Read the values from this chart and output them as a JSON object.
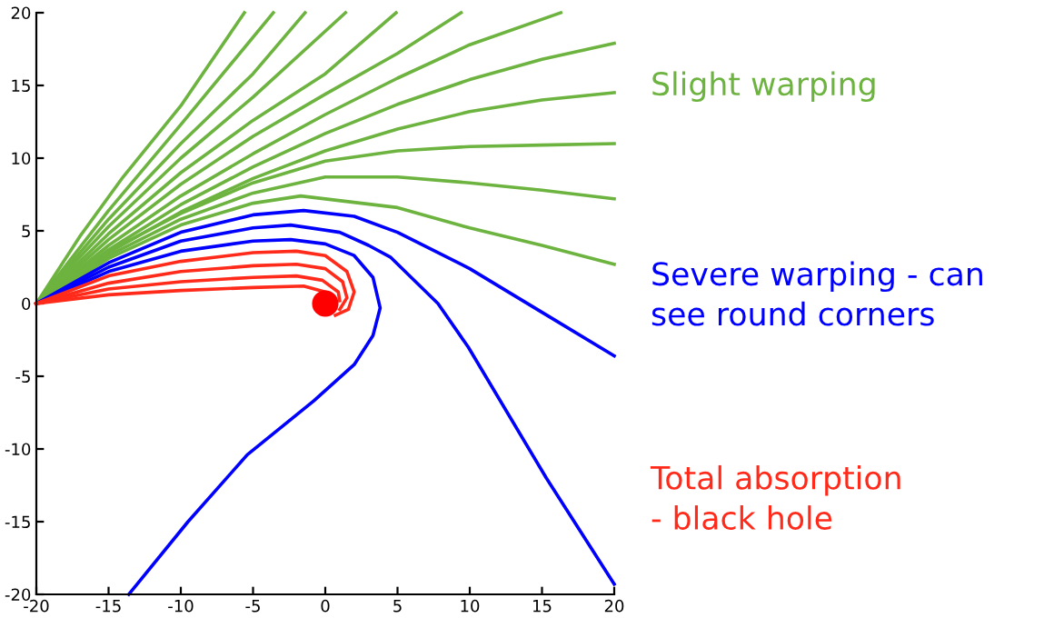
{
  "chart_data": {
    "type": "line",
    "xlim": [
      -20,
      20
    ],
    "ylim": [
      -20,
      20
    ],
    "xticks": [
      -20,
      -15,
      -10,
      -5,
      0,
      5,
      10,
      15,
      20
    ],
    "yticks": [
      -20,
      -15,
      -10,
      -5,
      0,
      5,
      10,
      15,
      20
    ],
    "grid": false,
    "marker": "none",
    "line_style": "solid",
    "series": [
      {
        "color": "#6db33f",
        "x": [
          -20,
          -17,
          -14,
          -10,
          -5.6
        ],
        "values": [
          0,
          4.6,
          8.7,
          13.6,
          20
        ]
      },
      {
        "color": "#6db33f",
        "x": [
          -20,
          -15,
          -10,
          -3.6
        ],
        "values": [
          0,
          6.4,
          12.3,
          20
        ]
      },
      {
        "color": "#6db33f",
        "x": [
          -20,
          -15,
          -10,
          -5,
          -1.4
        ],
        "values": [
          0,
          5.8,
          11.0,
          15.8,
          20
        ]
      },
      {
        "color": "#6db33f",
        "x": [
          -20,
          -15,
          -10,
          -5,
          1.4
        ],
        "values": [
          0,
          5.3,
          10,
          14.2,
          20
        ]
      },
      {
        "color": "#6db33f",
        "x": [
          -20,
          -15,
          -10,
          -5,
          0,
          4.9
        ],
        "values": [
          0,
          4.8,
          9.0,
          12.6,
          15.8,
          20
        ]
      },
      {
        "color": "#6db33f",
        "x": [
          -20,
          -15,
          -10,
          -5,
          0,
          5,
          9.4
        ],
        "values": [
          0,
          4.4,
          8.2,
          11.5,
          14.4,
          17.2,
          20
        ]
      },
      {
        "color": "#6db33f",
        "x": [
          -20,
          -15,
          -10,
          -5,
          0,
          5,
          10,
          16.3
        ],
        "values": [
          0,
          4.0,
          7.4,
          10.3,
          13.0,
          15.5,
          17.8,
          20
        ]
      },
      {
        "color": "#6db33f",
        "x": [
          -20,
          -15,
          -10,
          -5,
          0,
          5,
          10,
          15,
          20
        ],
        "values": [
          0,
          3.7,
          6.8,
          9.4,
          11.7,
          13.7,
          15.4,
          16.8,
          17.9
        ]
      },
      {
        "color": "#6db33f",
        "x": [
          -20,
          -15,
          -10,
          -5,
          0,
          5,
          10,
          15,
          20
        ],
        "values": [
          0,
          3.5,
          6.3,
          8.6,
          10.5,
          12.0,
          13.2,
          14.0,
          14.5
        ]
      },
      {
        "color": "#6db33f",
        "x": [
          -20,
          -15,
          -10,
          -5,
          0,
          5,
          10,
          15,
          20
        ],
        "values": [
          0,
          3.6,
          6.2,
          8.3,
          9.8,
          10.5,
          10.8,
          10.9,
          11.0
        ]
      },
      {
        "color": "#6db33f",
        "x": [
          -20,
          -15,
          -10,
          -5,
          0,
          5,
          10,
          15,
          20
        ],
        "values": [
          0,
          3.3,
          5.8,
          7.6,
          8.7,
          8.7,
          8.3,
          7.8,
          7.2
        ]
      },
      {
        "color": "#6db33f",
        "x": [
          -20,
          -15,
          -10,
          -5,
          -1.7,
          5,
          10,
          15,
          20
        ],
        "values": [
          0,
          3.1,
          5.4,
          6.9,
          7.4,
          6.6,
          5.2,
          4.0,
          2.7
        ]
      },
      {
        "color": "#0000ff",
        "x": [
          -20,
          -15,
          -10,
          -5,
          -1.5,
          2,
          5,
          10,
          15,
          20
        ],
        "values": [
          0,
          2.8,
          4.9,
          6.1,
          6.4,
          6.0,
          4.9,
          2.4,
          -0.6,
          -3.6
        ]
      },
      {
        "color": "#0000ff",
        "x": [
          -20,
          -15,
          -10,
          -5,
          -2.4,
          1,
          3,
          4.5,
          7.8,
          9.9,
          15.3,
          20
        ],
        "values": [
          0,
          2.5,
          4.3,
          5.2,
          5.4,
          4.9,
          4.0,
          3.2,
          0,
          -3.0,
          -12,
          -19.3
        ]
      },
      {
        "color": "#0000ff",
        "x": [
          -20,
          -15,
          -10,
          -5,
          -2.4,
          0,
          2,
          3.3,
          3.8,
          3.3,
          2,
          -0.8,
          -5.4,
          -9.5,
          -13.6
        ],
        "values": [
          0,
          2.2,
          3.6,
          4.3,
          4.4,
          4.1,
          3.3,
          1.8,
          -0.3,
          -2.2,
          -4.2,
          -6.7,
          -10.4,
          -15,
          -20
        ]
      },
      {
        "color": "#ff2a1a",
        "x": [
          -20,
          -15,
          -10,
          -5,
          -2,
          0,
          1.5,
          2,
          1.6,
          0.7
        ],
        "values": [
          0,
          1.9,
          2.9,
          3.5,
          3.6,
          3.3,
          2.2,
          0.8,
          -0.4,
          -0.8
        ]
      },
      {
        "color": "#ff2a1a",
        "x": [
          -20,
          -15,
          -10,
          -5,
          -2,
          0,
          1.2,
          1.5,
          1.0
        ],
        "values": [
          0,
          1.4,
          2.2,
          2.6,
          2.7,
          2.4,
          1.5,
          0.4,
          -0.4
        ]
      },
      {
        "color": "#ff2a1a",
        "x": [
          -20,
          -15,
          -10,
          -5,
          -2,
          -0.2,
          0.9,
          1.0
        ],
        "values": [
          0,
          1.0,
          1.5,
          1.8,
          1.9,
          1.6,
          0.8,
          0.2
        ]
      },
      {
        "color": "#ff2a1a",
        "x": [
          -20,
          -15,
          -10,
          -5,
          -1.5,
          0
        ],
        "values": [
          0,
          0.6,
          0.9,
          1.1,
          1.2,
          0.8
        ]
      },
      {
        "type": "scatter",
        "marker": "circle",
        "color": "#ff0000",
        "x": [
          0
        ],
        "values": [
          0
        ]
      }
    ],
    "annotations": [
      "Slight warping",
      "Severe warping - can\nsee round corners",
      "Total absorption\n- black hole"
    ]
  }
}
